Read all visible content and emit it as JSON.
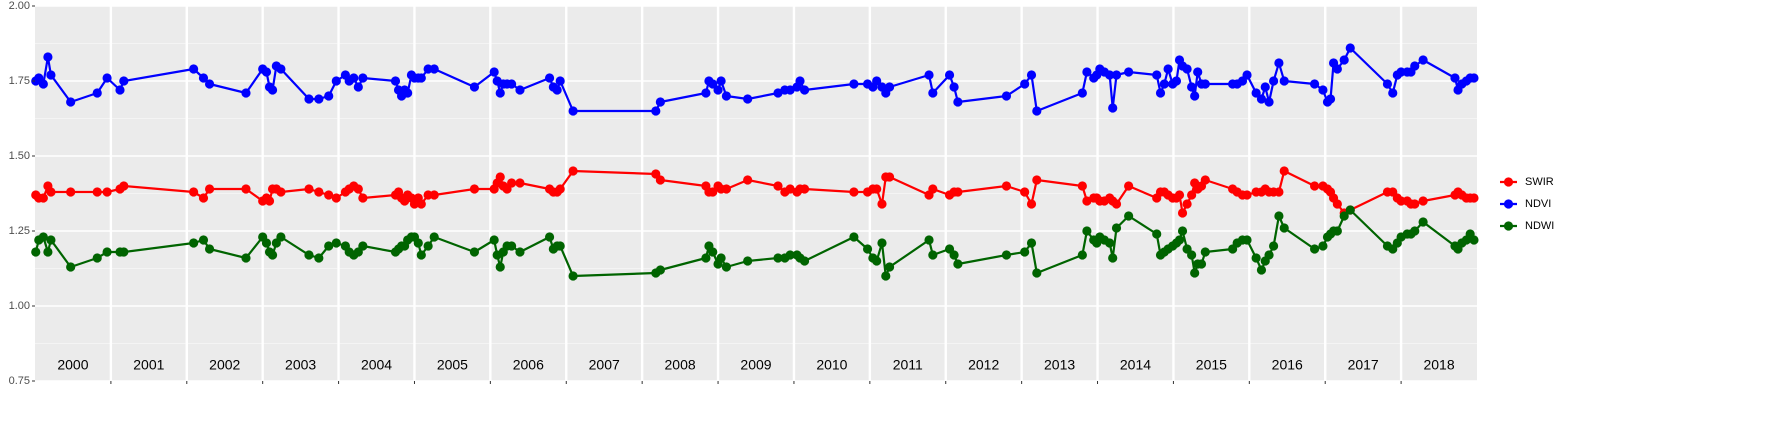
{
  "chart_data": {
    "type": "line",
    "x": [
      2000.01,
      2000.05,
      2000.11,
      2000.17,
      2000.21,
      2000.47,
      2000.82,
      2000.95,
      2001.12,
      2001.17,
      2002.09,
      2002.22,
      2002.3,
      2002.78,
      2003.0,
      2003.05,
      2003.09,
      2003.13,
      2003.18,
      2003.24,
      2003.61,
      2003.74,
      2003.87,
      2003.97,
      2004.09,
      2004.14,
      2004.2,
      2004.26,
      2004.32,
      2004.75,
      2004.79,
      2004.83,
      2004.87,
      2004.91,
      2004.96,
      2005.0,
      2005.05,
      2005.09,
      2005.18,
      2005.26,
      2005.79,
      2006.05,
      2006.09,
      2006.13,
      2006.17,
      2006.22,
      2006.28,
      2006.39,
      2006.78,
      2006.83,
      2006.88,
      2006.92,
      2007.09,
      2008.18,
      2008.24,
      2008.84,
      2008.88,
      2008.93,
      2009.0,
      2009.04,
      2009.11,
      2009.39,
      2009.79,
      2009.88,
      2009.95,
      2010.04,
      2010.08,
      2010.14,
      2010.79,
      2010.97,
      2011.04,
      2011.09,
      2011.16,
      2011.21,
      2011.26,
      2011.78,
      2011.83,
      2012.05,
      2012.11,
      2012.16,
      2012.8,
      2013.04,
      2013.13,
      2013.2,
      2013.8,
      2013.86,
      2013.95,
      2013.99,
      2014.03,
      2014.09,
      2014.16,
      2014.2,
      2014.25,
      2014.41,
      2014.78,
      2014.83,
      2014.88,
      2014.93,
      2014.99,
      2015.04,
      2015.08,
      2015.12,
      2015.18,
      2015.24,
      2015.28,
      2015.32,
      2015.37,
      2015.42,
      2015.78,
      2015.84,
      2015.91,
      2015.97,
      2016.09,
      2016.16,
      2016.21,
      2016.26,
      2016.32,
      2016.39,
      2016.46,
      2016.86,
      2016.97,
      2017.03,
      2017.07,
      2017.11,
      2017.16,
      2017.25,
      2017.33,
      2017.82,
      2017.89,
      2017.95,
      2018.0,
      2018.08,
      2018.13,
      2018.18,
      2018.29,
      2018.71,
      2018.75,
      2018.8,
      2018.86,
      2018.91,
      2018.96
    ],
    "series": [
      {
        "name": "SWIR",
        "color": "#ff0000",
        "values": [
          1.37,
          1.36,
          1.36,
          1.4,
          1.38,
          1.38,
          1.38,
          1.38,
          1.39,
          1.4,
          1.38,
          1.36,
          1.39,
          1.39,
          1.35,
          1.36,
          1.35,
          1.39,
          1.39,
          1.38,
          1.39,
          1.38,
          1.37,
          1.36,
          1.38,
          1.39,
          1.4,
          1.39,
          1.36,
          1.37,
          1.38,
          1.36,
          1.35,
          1.37,
          1.36,
          1.34,
          1.36,
          1.34,
          1.37,
          1.37,
          1.39,
          1.39,
          1.41,
          1.43,
          1.4,
          1.39,
          1.41,
          1.41,
          1.39,
          1.38,
          1.38,
          1.39,
          1.45,
          1.44,
          1.42,
          1.4,
          1.38,
          1.38,
          1.4,
          1.39,
          1.39,
          1.42,
          1.4,
          1.38,
          1.39,
          1.38,
          1.39,
          1.39,
          1.38,
          1.38,
          1.39,
          1.39,
          1.34,
          1.43,
          1.43,
          1.37,
          1.39,
          1.37,
          1.38,
          1.38,
          1.4,
          1.38,
          1.34,
          1.42,
          1.4,
          1.35,
          1.36,
          1.36,
          1.35,
          1.35,
          1.36,
          1.35,
          1.34,
          1.4,
          1.36,
          1.38,
          1.38,
          1.37,
          1.36,
          1.36,
          1.37,
          1.31,
          1.34,
          1.37,
          1.41,
          1.39,
          1.4,
          1.42,
          1.39,
          1.38,
          1.37,
          1.37,
          1.38,
          1.38,
          1.39,
          1.38,
          1.38,
          1.38,
          1.45,
          1.4,
          1.4,
          1.39,
          1.38,
          1.36,
          1.34,
          1.31,
          1.32,
          1.38,
          1.38,
          1.36,
          1.35,
          1.35,
          1.34,
          1.34,
          1.35,
          1.37,
          1.38,
          1.37,
          1.36,
          1.36,
          1.36
        ]
      },
      {
        "name": "NDVI",
        "color": "#0000ff",
        "values": [
          1.75,
          1.76,
          1.74,
          1.83,
          1.77,
          1.68,
          1.71,
          1.76,
          1.72,
          1.75,
          1.79,
          1.76,
          1.74,
          1.71,
          1.79,
          1.78,
          1.73,
          1.72,
          1.8,
          1.79,
          1.69,
          1.69,
          1.7,
          1.75,
          1.77,
          1.75,
          1.76,
          1.73,
          1.76,
          1.75,
          1.72,
          1.7,
          1.72,
          1.71,
          1.77,
          1.76,
          1.76,
          1.76,
          1.79,
          1.79,
          1.73,
          1.78,
          1.75,
          1.71,
          1.74,
          1.74,
          1.74,
          1.72,
          1.76,
          1.73,
          1.72,
          1.75,
          1.65,
          1.65,
          1.68,
          1.71,
          1.75,
          1.74,
          1.72,
          1.75,
          1.7,
          1.69,
          1.71,
          1.72,
          1.72,
          1.73,
          1.75,
          1.72,
          1.74,
          1.74,
          1.73,
          1.75,
          1.73,
          1.71,
          1.73,
          1.77,
          1.71,
          1.77,
          1.73,
          1.68,
          1.7,
          1.74,
          1.77,
          1.65,
          1.71,
          1.78,
          1.76,
          1.77,
          1.79,
          1.78,
          1.77,
          1.66,
          1.77,
          1.78,
          1.77,
          1.71,
          1.74,
          1.79,
          1.74,
          1.75,
          1.82,
          1.8,
          1.79,
          1.73,
          1.7,
          1.78,
          1.74,
          1.74,
          1.74,
          1.74,
          1.75,
          1.77,
          1.71,
          1.69,
          1.73,
          1.68,
          1.75,
          1.81,
          1.75,
          1.74,
          1.72,
          1.68,
          1.69,
          1.81,
          1.79,
          1.82,
          1.86,
          1.74,
          1.71,
          1.77,
          1.78,
          1.78,
          1.78,
          1.8,
          1.82,
          1.76,
          1.72,
          1.74,
          1.75,
          1.76,
          1.76
        ]
      },
      {
        "name": "NDWI",
        "color": "#006400",
        "values": [
          1.18,
          1.22,
          1.23,
          1.18,
          1.22,
          1.13,
          1.16,
          1.18,
          1.18,
          1.18,
          1.21,
          1.22,
          1.19,
          1.16,
          1.23,
          1.21,
          1.18,
          1.17,
          1.21,
          1.23,
          1.17,
          1.16,
          1.2,
          1.21,
          1.2,
          1.18,
          1.17,
          1.18,
          1.2,
          1.18,
          1.19,
          1.2,
          1.2,
          1.22,
          1.23,
          1.23,
          1.21,
          1.17,
          1.2,
          1.23,
          1.18,
          1.22,
          1.17,
          1.13,
          1.18,
          1.2,
          1.2,
          1.18,
          1.23,
          1.19,
          1.2,
          1.2,
          1.1,
          1.11,
          1.12,
          1.16,
          1.2,
          1.18,
          1.14,
          1.16,
          1.13,
          1.15,
          1.16,
          1.16,
          1.17,
          1.17,
          1.16,
          1.15,
          1.23,
          1.19,
          1.16,
          1.15,
          1.21,
          1.1,
          1.13,
          1.22,
          1.17,
          1.19,
          1.17,
          1.14,
          1.17,
          1.18,
          1.21,
          1.11,
          1.17,
          1.25,
          1.22,
          1.21,
          1.23,
          1.22,
          1.21,
          1.16,
          1.26,
          1.3,
          1.24,
          1.17,
          1.18,
          1.19,
          1.2,
          1.21,
          1.22,
          1.25,
          1.19,
          1.17,
          1.11,
          1.14,
          1.14,
          1.18,
          1.19,
          1.21,
          1.22,
          1.22,
          1.16,
          1.12,
          1.15,
          1.17,
          1.2,
          1.3,
          1.26,
          1.19,
          1.2,
          1.23,
          1.24,
          1.25,
          1.25,
          1.3,
          1.32,
          1.2,
          1.19,
          1.21,
          1.23,
          1.24,
          1.24,
          1.25,
          1.28,
          1.2,
          1.19,
          1.21,
          1.22,
          1.24,
          1.22
        ]
      }
    ],
    "categories": [
      "2000",
      "2001",
      "2002",
      "2003",
      "2004",
      "2005",
      "2006",
      "2007",
      "2008",
      "2009",
      "2010",
      "2011",
      "2012",
      "2013",
      "2014",
      "2015",
      "2016",
      "2017",
      "2018"
    ],
    "xlim": [
      2000,
      2019
    ],
    "xticks": [
      2001,
      2002,
      2003,
      2004,
      2005,
      2006,
      2007,
      2008,
      2009,
      2010,
      2011,
      2012,
      2013,
      2014,
      2015,
      2016,
      2017,
      2018
    ],
    "ylim": [
      0.75,
      2.0
    ],
    "yticks": [
      {
        "value": 0.75,
        "label": "0.75"
      },
      {
        "value": 1.0,
        "label": "1.00"
      },
      {
        "value": 1.25,
        "label": "1.25"
      },
      {
        "value": 1.5,
        "label": "1.50"
      },
      {
        "value": 1.75,
        "label": "1.75"
      },
      {
        "value": 2.0,
        "label": "2.00"
      }
    ],
    "grid": true,
    "legend": "right"
  }
}
